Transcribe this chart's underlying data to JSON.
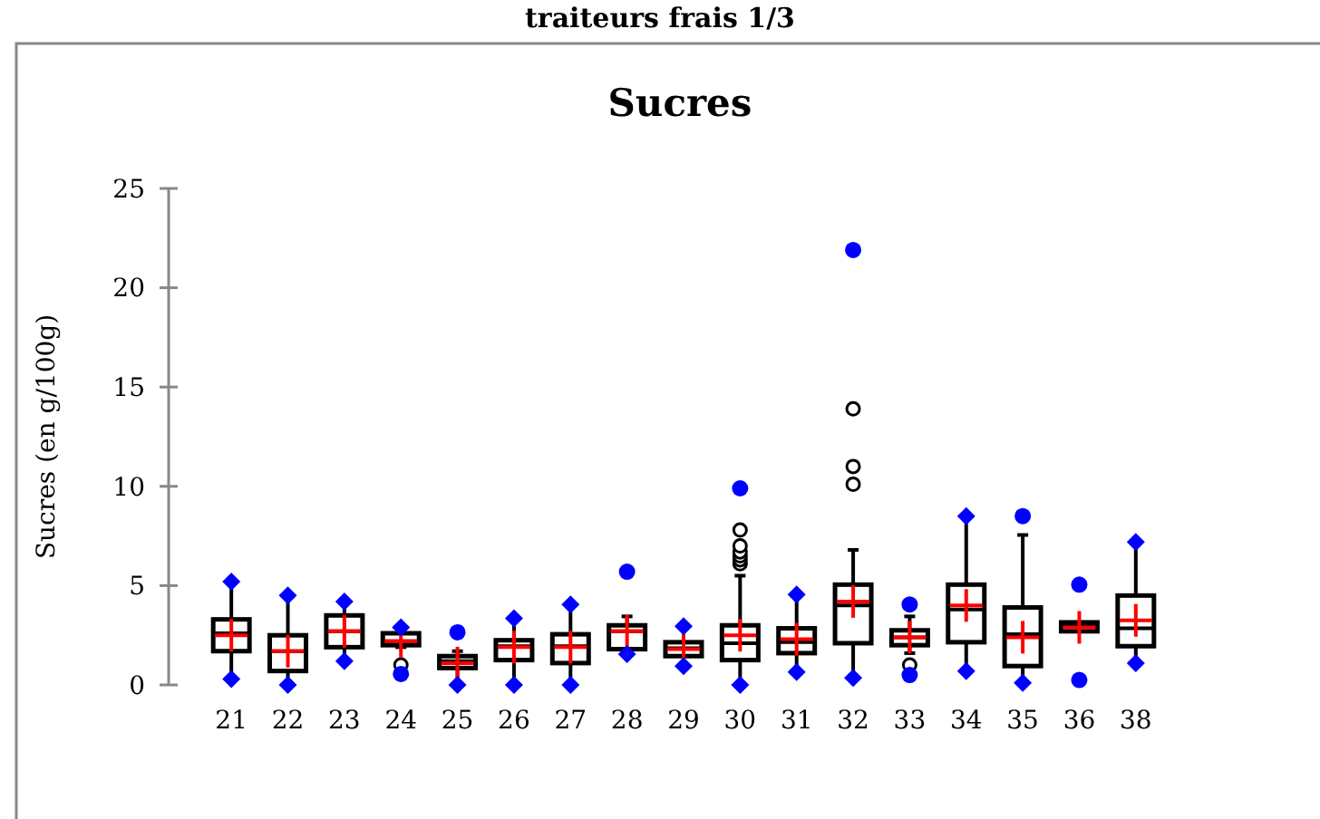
{
  "chart_data": {
    "type": "box",
    "title": "Sucres",
    "ylabel": "Sucres (en g/100g)",
    "annotations": [
      "traiteurs frais 1/3"
    ],
    "categories": [
      "21",
      "22",
      "23",
      "24",
      "25",
      "26",
      "27",
      "28",
      "29",
      "30",
      "31",
      "32",
      "33",
      "34",
      "35",
      "36",
      "38"
    ],
    "ylim": [
      0,
      25
    ],
    "yticks": [
      0,
      5,
      10,
      15,
      20,
      25
    ],
    "boxes": [
      {
        "low": 0.3,
        "q1": 1.7,
        "median": 2.6,
        "q3": 3.3,
        "high": 5.2,
        "mean": 2.5
      },
      {
        "low": 0,
        "q1": 0.7,
        "median": 1.7,
        "q3": 2.5,
        "high": 4.5,
        "mean": 1.7
      },
      {
        "low": 1.2,
        "q1": 1.9,
        "median": 2.7,
        "q3": 3.5,
        "high": 4.2,
        "mean": 2.7
      },
      {
        "low": 1.9,
        "q1": 2,
        "median": 2.2,
        "q3": 2.6,
        "high": 2.9,
        "mean": 2.2,
        "outliers": [
          1
        ]
      },
      {
        "low": 0,
        "q1": 0.85,
        "median": 1.2,
        "q3": 1.45,
        "high": 1.7,
        "mean": 1.1
      },
      {
        "low": 0,
        "q1": 1.25,
        "median": 1.95,
        "q3": 2.25,
        "high": 3.35,
        "mean": 1.9
      },
      {
        "low": 0,
        "q1": 1.1,
        "median": 1.95,
        "q3": 2.55,
        "high": 4.05,
        "mean": 1.9
      },
      {
        "low": 1.55,
        "q1": 1.8,
        "median": 2.7,
        "q3": 3,
        "high": 3.45,
        "mean": 2.7
      },
      {
        "low": 0.95,
        "q1": 1.45,
        "median": 1.85,
        "q3": 2.15,
        "high": 2.95,
        "mean": 1.8
      },
      {
        "low": 0,
        "q1": 1.25,
        "median": 2.1,
        "q3": 3,
        "high": 5.5,
        "mean": 2.5,
        "outliers": [
          6.1,
          6.3,
          6.5,
          6.7,
          7,
          7.8
        ]
      },
      {
        "low": 0.65,
        "q1": 1.6,
        "median": 2.15,
        "q3": 2.85,
        "high": 4.55,
        "mean": 2.3
      },
      {
        "low": 0.35,
        "q1": 2.1,
        "median": 4,
        "q3": 5.05,
        "high": 6.8,
        "mean": 4.2,
        "outliers": [
          10.1,
          11,
          13.9
        ]
      },
      {
        "low": 1.6,
        "q1": 2,
        "median": 2.4,
        "q3": 2.75,
        "high": 3.45,
        "mean": 2.4,
        "outliers": [
          1
        ]
      },
      {
        "low": 0.7,
        "q1": 2.15,
        "median": 3.8,
        "q3": 5.05,
        "high": 8.5,
        "mean": 4
      },
      {
        "low": 0.1,
        "q1": 0.95,
        "median": 2.55,
        "q3": 3.9,
        "high": 7.55,
        "mean": 2.4
      },
      {
        "low": 2.7,
        "q1": 2.7,
        "median": 3,
        "q3": 3.15,
        "high": 3.15,
        "mean": 2.9
      },
      {
        "low": 1.1,
        "q1": 1.95,
        "median": 2.85,
        "q3": 4.5,
        "high": 7.2,
        "mean": 3.25
      }
    ],
    "series": [
      {
        "type": "scatter",
        "color": "#0000ff",
        "marker": "diamond",
        "x": [
          "21",
          "22",
          "23",
          "24",
          "25",
          "26",
          "27",
          "28",
          "29",
          "30",
          "31",
          "32",
          "33",
          "34",
          "35",
          "36",
          "38"
        ],
        "values": [
          5.2,
          4.5,
          4.2,
          2.9,
          2.65,
          3.35,
          4.05,
          5.7,
          2.95,
          9.9,
          4.55,
          21.9,
          4.05,
          8.5,
          8.5,
          5.05,
          7.2
        ]
      },
      {
        "type": "scatter",
        "color": "#0000ff",
        "marker": "diamond",
        "x": [
          "21",
          "22",
          "23",
          "24",
          "25",
          "26",
          "27",
          "28",
          "29",
          "30",
          "31",
          "32",
          "33",
          "34",
          "35",
          "36",
          "38"
        ],
        "values": [
          0.3,
          0,
          1.2,
          0.55,
          0,
          0,
          0,
          1.55,
          0.95,
          0,
          0.65,
          0.35,
          0.5,
          0.7,
          0.1,
          0.25,
          1.1
        ]
      }
    ]
  }
}
